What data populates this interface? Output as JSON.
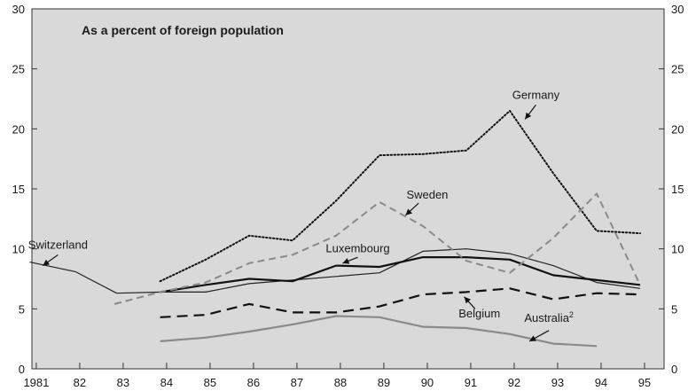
{
  "chart_data": {
    "type": "line",
    "title": "As a percent of foreign population",
    "x_tick_labels": [
      "1981",
      "82",
      "83",
      "84",
      "85",
      "86",
      "87",
      "88",
      "89",
      "90",
      "91",
      "92",
      "93",
      "94",
      "95"
    ],
    "xlim": [
      1980.9,
      1995.45
    ],
    "ylim": [
      0,
      30
    ],
    "y_ticks": [
      0,
      5,
      10,
      15,
      20,
      25,
      30
    ],
    "grid": false,
    "background": "#d9d9d9",
    "series": [
      {
        "name": "Switzerland",
        "style": "solid-thin",
        "color": "#222222",
        "points": [
          [
            1980.85,
            8.9
          ],
          [
            1981.9,
            8.1
          ],
          [
            1982.85,
            6.3
          ],
          [
            1983.9,
            6.4
          ],
          [
            1984.9,
            6.4
          ],
          [
            1985.9,
            7.1
          ],
          [
            1986.9,
            7.4
          ],
          [
            1987.9,
            7.7
          ],
          [
            1988.9,
            8.0
          ],
          [
            1989.9,
            9.8
          ],
          [
            1990.9,
            10.0
          ],
          [
            1991.9,
            9.6
          ],
          [
            1992.9,
            8.6
          ],
          [
            1993.9,
            7.2
          ],
          [
            1994.9,
            6.7
          ]
        ]
      },
      {
        "name": "Luxembourg",
        "style": "solid-thick",
        "color": "#111111",
        "points": [
          [
            1983.85,
            6.4
          ],
          [
            1984.9,
            7.0
          ],
          [
            1985.9,
            7.5
          ],
          [
            1986.9,
            7.3
          ],
          [
            1987.9,
            8.6
          ],
          [
            1988.9,
            8.5
          ],
          [
            1989.9,
            9.3
          ],
          [
            1990.9,
            9.3
          ],
          [
            1991.9,
            9.1
          ],
          [
            1992.9,
            7.8
          ],
          [
            1993.9,
            7.4
          ],
          [
            1994.9,
            7.0
          ]
        ]
      },
      {
        "name": "Germany",
        "style": "dotted",
        "color": "#111111",
        "points": [
          [
            1983.85,
            7.3
          ],
          [
            1984.9,
            9.1
          ],
          [
            1985.9,
            11.1
          ],
          [
            1986.9,
            10.7
          ],
          [
            1987.9,
            14.0
          ],
          [
            1988.9,
            17.8
          ],
          [
            1989.9,
            17.9
          ],
          [
            1990.9,
            18.2
          ],
          [
            1991.9,
            21.5
          ],
          [
            1992.9,
            16.3
          ],
          [
            1993.9,
            11.5
          ],
          [
            1994.9,
            11.3
          ]
        ]
      },
      {
        "name": "Sweden",
        "style": "dashed-grey",
        "color": "#8a8a8a",
        "points": [
          [
            1982.8,
            5.4
          ],
          [
            1983.85,
            6.4
          ],
          [
            1984.9,
            7.2
          ],
          [
            1985.9,
            8.8
          ],
          [
            1986.9,
            9.5
          ],
          [
            1987.9,
            11.1
          ],
          [
            1988.9,
            13.9
          ],
          [
            1989.9,
            11.9
          ],
          [
            1990.9,
            9.0
          ],
          [
            1991.9,
            8.0
          ],
          [
            1992.9,
            10.9
          ],
          [
            1993.9,
            14.6
          ],
          [
            1994.9,
            7.0
          ]
        ]
      },
      {
        "name": "Belgium",
        "style": "dashed-thick",
        "color": "#111111",
        "points": [
          [
            1983.85,
            4.3
          ],
          [
            1984.9,
            4.5
          ],
          [
            1985.9,
            5.4
          ],
          [
            1986.9,
            4.7
          ],
          [
            1987.9,
            4.7
          ],
          [
            1988.9,
            5.2
          ],
          [
            1989.9,
            6.2
          ],
          [
            1990.9,
            6.4
          ],
          [
            1991.9,
            6.7
          ],
          [
            1992.9,
            5.8
          ],
          [
            1993.9,
            6.3
          ],
          [
            1994.9,
            6.2
          ]
        ]
      },
      {
        "name": "Australia",
        "style": "solid-grey",
        "color": "#8a8a8a",
        "points": [
          [
            1983.85,
            2.3
          ],
          [
            1984.9,
            2.6
          ],
          [
            1985.9,
            3.1
          ],
          [
            1986.9,
            3.7
          ],
          [
            1987.9,
            4.4
          ],
          [
            1988.9,
            4.3
          ],
          [
            1989.9,
            3.5
          ],
          [
            1990.9,
            3.4
          ],
          [
            1991.9,
            2.9
          ],
          [
            1992.9,
            2.1
          ],
          [
            1993.9,
            1.9
          ]
        ]
      }
    ],
    "annotations": [
      {
        "id": "switzerland",
        "text": "Switzerland",
        "sup": "",
        "tx": 1981.5,
        "ty": 10.0,
        "arrow_from": [
          1981.5,
          9.5
        ],
        "arrow_to": [
          1981.15,
          8.6
        ]
      },
      {
        "id": "germany",
        "text": "Germany",
        "sup": "",
        "tx": 1992.5,
        "ty": 22.5,
        "arrow_from": [
          1992.5,
          22.0
        ],
        "arrow_to": [
          1992.25,
          20.8
        ]
      },
      {
        "id": "sweden",
        "text": "Sweden",
        "sup": "",
        "tx": 1990.0,
        "ty": 14.2,
        "arrow_from": [
          1989.8,
          13.8
        ],
        "arrow_to": [
          1989.5,
          12.8
        ]
      },
      {
        "id": "luxembourg",
        "text": "Luxembourg",
        "sup": "",
        "tx": 1988.4,
        "ty": 9.7,
        "arrow_from": [
          1988.4,
          9.3
        ],
        "arrow_to": [
          1988.05,
          8.8
        ]
      },
      {
        "id": "belgium",
        "text": "Belgium",
        "sup": "",
        "tx": 1991.2,
        "ty": 4.3,
        "arrow_from": [
          1991.1,
          5.0
        ],
        "arrow_to": [
          1990.85,
          6.0
        ]
      },
      {
        "id": "australia",
        "text": "Australia",
        "sup": "2",
        "tx": 1992.8,
        "ty": 3.9,
        "arrow_from": [
          1992.8,
          3.2
        ],
        "arrow_to": [
          1992.35,
          2.3
        ]
      }
    ]
  }
}
